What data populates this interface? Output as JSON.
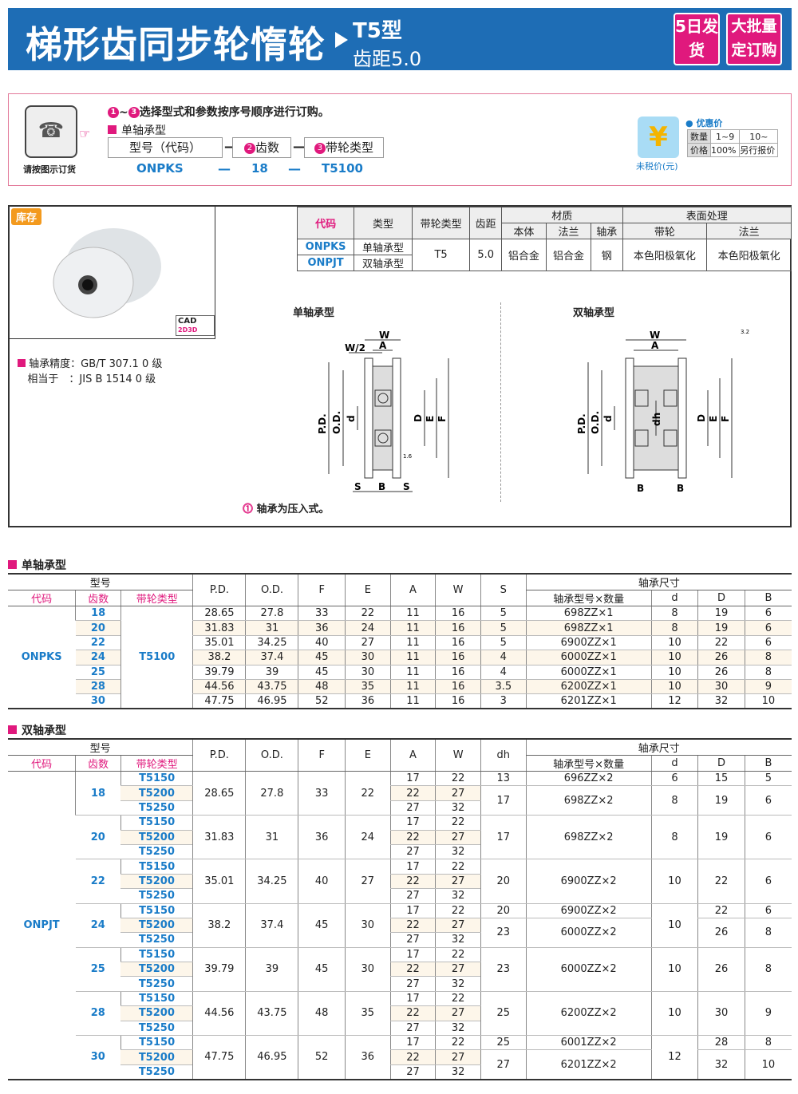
{
  "header": {
    "title": "梯形齿同步轮惰轮",
    "type": "T5型",
    "pitch": "齿距5.0",
    "badge_days": "5日发货",
    "badge_bulk": "大批量定订购"
  },
  "order": {
    "icon_caption": "请按图示订货",
    "step_note": "选择型式和参数按序号顺序进行订购。",
    "step_from": "1",
    "step_sep": "~",
    "step_to": "3",
    "subtype": "单轴承型",
    "box1": "型号（代码）",
    "box1_num": "1",
    "box2": "齿数",
    "box2_num": "2",
    "box3": "带轮类型",
    "box3_num": "3",
    "dash": "—",
    "ex_code": "ONPKS",
    "ex_teeth": "18",
    "ex_type": "T5100",
    "price_caption": "未税价(元)",
    "price_title": "优惠价",
    "qty_label": "数量",
    "qty1": "1~9",
    "qty2": "10~",
    "price_label": "价格",
    "price1": "100%",
    "price2": "另行报价"
  },
  "product": {
    "stock": "库存",
    "cad": "CAD",
    "cad2d": "2D",
    "cad3d": "3D",
    "note1_label": "轴承精度：",
    "note1": "GB/T 307.1 0 级",
    "note2_label": "相当于　：",
    "note2": "JIS B 1514 0 级",
    "diagram_single": "单轴承型",
    "diagram_double": "双轴承型",
    "press_note": "轴承为压入式。",
    "dims": {
      "W": "W",
      "A": "A",
      "W2": "W/2",
      "PD": "P.D.",
      "OD": "O.D.",
      "d": "d",
      "D": "D",
      "E": "E",
      "F": "F",
      "S": "S",
      "B": "B",
      "dh": "dh",
      "r": "1.6",
      "rough": "3.2"
    }
  },
  "spec": {
    "h_code": "代码",
    "h_type": "类型",
    "h_pulley": "带轮类型",
    "h_pitch": "齿距",
    "h_mat": "材质",
    "h_body": "本体",
    "h_flange": "法兰",
    "h_bearing": "轴承",
    "h_surface": "表面处理",
    "h_s_pulley": "带轮",
    "h_s_flange": "法兰",
    "rows": [
      {
        "code": "ONPKS",
        "type": "单轴承型"
      },
      {
        "code": "ONPJT",
        "type": "双轴承型"
      }
    ],
    "pulley": "T5",
    "pitch": "5.0",
    "body": "铝合金",
    "flange": "铝合金",
    "bearing": "钢",
    "s_pulley": "本色阳极氧化",
    "s_flange": "本色阳极氧化"
  },
  "single": {
    "title": "单轴承型",
    "h_model": "型号",
    "h_code": "代码",
    "h_teeth": "齿数",
    "h_type": "带轮类型",
    "cols": [
      "P.D.",
      "O.D.",
      "F",
      "E",
      "A",
      "W",
      "S"
    ],
    "h_bear": "轴承尺寸",
    "h_bmodel": "轴承型号×数量",
    "h_d": "d",
    "h_D": "D",
    "h_B": "B",
    "code": "ONPKS",
    "type": "T5100",
    "rows": [
      [
        "18",
        "28.65",
        "27.8",
        "33",
        "22",
        "11",
        "16",
        "5",
        "698ZZ×1",
        "8",
        "19",
        "6"
      ],
      [
        "20",
        "31.83",
        "31",
        "36",
        "24",
        "11",
        "16",
        "5",
        "698ZZ×1",
        "8",
        "19",
        "6"
      ],
      [
        "22",
        "35.01",
        "34.25",
        "40",
        "27",
        "11",
        "16",
        "5",
        "6900ZZ×1",
        "10",
        "22",
        "6"
      ],
      [
        "24",
        "38.2",
        "37.4",
        "45",
        "30",
        "11",
        "16",
        "4",
        "6000ZZ×1",
        "10",
        "26",
        "8"
      ],
      [
        "25",
        "39.79",
        "39",
        "45",
        "30",
        "11",
        "16",
        "4",
        "6000ZZ×1",
        "10",
        "26",
        "8"
      ],
      [
        "28",
        "44.56",
        "43.75",
        "48",
        "35",
        "11",
        "16",
        "3.5",
        "6200ZZ×1",
        "10",
        "30",
        "9"
      ],
      [
        "30",
        "47.75",
        "46.95",
        "52",
        "36",
        "11",
        "16",
        "3",
        "6201ZZ×1",
        "12",
        "32",
        "10"
      ]
    ]
  },
  "double": {
    "title": "双轴承型",
    "h_model": "型号",
    "h_code": "代码",
    "h_teeth": "齿数",
    "h_type": "带轮类型",
    "cols": [
      "P.D.",
      "O.D.",
      "F",
      "E",
      "A",
      "W",
      "dh"
    ],
    "h_bear": "轴承尺寸",
    "h_bmodel": "轴承型号×数量",
    "h_d": "d",
    "h_D": "D",
    "h_B": "B",
    "code": "ONPJT",
    "types": [
      "T5150",
      "T5200",
      "T5250"
    ],
    "aw": [
      [
        "17",
        "22"
      ],
      [
        "22",
        "27"
      ],
      [
        "27",
        "32"
      ]
    ],
    "groups": [
      {
        "teeth": "18",
        "pd": "28.65",
        "od": "27.8",
        "f": "33",
        "e": "22",
        "dh": [
          [
            "13",
            1
          ],
          [
            "17",
            2
          ]
        ],
        "model": [
          [
            "696ZZ×2",
            1
          ],
          [
            "698ZZ×2",
            2
          ]
        ],
        "d": [
          [
            "6",
            1
          ],
          [
            "8",
            2
          ]
        ],
        "D": [
          [
            "15",
            1
          ],
          [
            "19",
            2
          ]
        ],
        "B": [
          [
            "5",
            1
          ],
          [
            "6",
            2
          ]
        ]
      },
      {
        "teeth": "20",
        "pd": "31.83",
        "od": "31",
        "f": "36",
        "e": "24",
        "dh": [
          [
            "17",
            3
          ]
        ],
        "model": [
          [
            "698ZZ×2",
            3
          ]
        ],
        "d": [
          [
            "8",
            3
          ]
        ],
        "D": [
          [
            "19",
            3
          ]
        ],
        "B": [
          [
            "6",
            3
          ]
        ]
      },
      {
        "teeth": "22",
        "pd": "35.01",
        "od": "34.25",
        "f": "40",
        "e": "27",
        "dh": [
          [
            "20",
            3
          ]
        ],
        "model": [
          [
            "6900ZZ×2",
            3
          ]
        ],
        "d": [
          [
            "10",
            3
          ]
        ],
        "D": [
          [
            "22",
            3
          ]
        ],
        "B": [
          [
            "6",
            3
          ]
        ]
      },
      {
        "teeth": "24",
        "pd": "38.2",
        "od": "37.4",
        "f": "45",
        "e": "30",
        "dh": [
          [
            "20",
            1
          ],
          [
            "23",
            2
          ]
        ],
        "model": [
          [
            "6900ZZ×2",
            1
          ],
          [
            "6000ZZ×2",
            2
          ]
        ],
        "d": [
          [
            "10",
            3
          ]
        ],
        "D": [
          [
            "22",
            1
          ],
          [
            "26",
            2
          ]
        ],
        "B": [
          [
            "6",
            1
          ],
          [
            "8",
            2
          ]
        ]
      },
      {
        "teeth": "25",
        "pd": "39.79",
        "od": "39",
        "f": "45",
        "e": "30",
        "dh": [
          [
            "23",
            3
          ]
        ],
        "model": [
          [
            "6000ZZ×2",
            3
          ]
        ],
        "d": [
          [
            "10",
            3
          ]
        ],
        "D": [
          [
            "26",
            3
          ]
        ],
        "B": [
          [
            "8",
            3
          ]
        ]
      },
      {
        "teeth": "28",
        "pd": "44.56",
        "od": "43.75",
        "f": "48",
        "e": "35",
        "dh": [
          [
            "25",
            3
          ]
        ],
        "model": [
          [
            "6200ZZ×2",
            3
          ]
        ],
        "d": [
          [
            "10",
            3
          ]
        ],
        "D": [
          [
            "30",
            3
          ]
        ],
        "B": [
          [
            "9",
            3
          ]
        ]
      },
      {
        "teeth": "30",
        "pd": "47.75",
        "od": "46.95",
        "f": "52",
        "e": "36",
        "dh": [
          [
            "25",
            1
          ],
          [
            "27",
            2
          ]
        ],
        "model": [
          [
            "6001ZZ×2",
            1
          ],
          [
            "6201ZZ×2",
            2
          ]
        ],
        "d": [
          [
            "12",
            3
          ]
        ],
        "D": [
          [
            "28",
            1
          ],
          [
            "32",
            2
          ]
        ],
        "B": [
          [
            "8",
            1
          ],
          [
            "10",
            2
          ]
        ]
      }
    ]
  },
  "colors": {
    "brand": "#1e6db5",
    "accent": "#e0197d",
    "code": "#1a7cc8"
  }
}
